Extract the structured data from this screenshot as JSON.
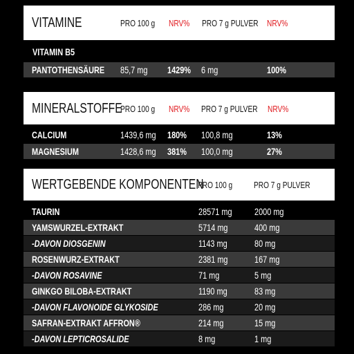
{
  "vitamine": {
    "title": "VITAMINE",
    "col_pro100": "PRO 100 g",
    "col_nrv1": "NRV%",
    "col_pro7": "PRO 7 g PULVER",
    "col_nrv2": "NRV%",
    "subheading": "VITAMIN B5",
    "rows": [
      {
        "name": "PANTOTHENSÄURE",
        "pro100": "85,7 mg",
        "nrv100": "1429%",
        "pro7": "6 mg",
        "nrv7": "100%"
      }
    ]
  },
  "mineralstoffe": {
    "title": "MINERALSTOFFE",
    "col_pro100": "PRO 100 g",
    "col_nrv1": "NRV%",
    "col_pro7": "PRO 7 g PULVER",
    "col_nrv2": "NRV%",
    "rows": [
      {
        "name": "CALCIUM",
        "pro100": "1439,6 mg",
        "nrv100": "180%",
        "pro7": "100,8 mg",
        "nrv7": "13%"
      },
      {
        "name": "MAGNESIUM",
        "pro100": "1428,6 mg",
        "nrv100": "381%",
        "pro7": "100,0 mg",
        "nrv7": "27%"
      }
    ]
  },
  "komponenten": {
    "title": "WERTGEBENDE KOMPONENTEN",
    "col_pro100": "PRO 100 g",
    "col_pro7": "PRO 7 g PULVER",
    "rows": [
      {
        "name": "TAURIN",
        "pro100": "28571 mg",
        "pro7": "2000 mg"
      },
      {
        "name": "YAMSWURZEL-EXTRAKT",
        "pro100": "5714 mg",
        "pro7": "400 mg"
      },
      {
        "name": "-DAVON DIOSGENIN",
        "pro100": "1143 mg",
        "pro7": "80 mg"
      },
      {
        "name": "ROSENWURZ-EXTRAKT",
        "pro100": "2381 mg",
        "pro7": "167 mg"
      },
      {
        "name": "-DAVON ROSAVINE",
        "pro100": "71 mg",
        "pro7": "5 mg"
      },
      {
        "name": "GINKGO BILOBA-EXTRAKT",
        "pro100": "1190 mg",
        "pro7": "83 mg"
      },
      {
        "name": "-DAVON FLAVONOIDE GLYKOSIDE",
        "pro100": "286 mg",
        "pro7": "20 mg"
      },
      {
        "name": "SAFRAN-EXTRAKT AFFRON®",
        "pro100": "214 mg",
        "pro7": "15 mg"
      },
      {
        "name": "-DAVON LEPTICROSALIDE",
        "pro100": "8 mg",
        "pro7": "1 mg"
      }
    ]
  }
}
